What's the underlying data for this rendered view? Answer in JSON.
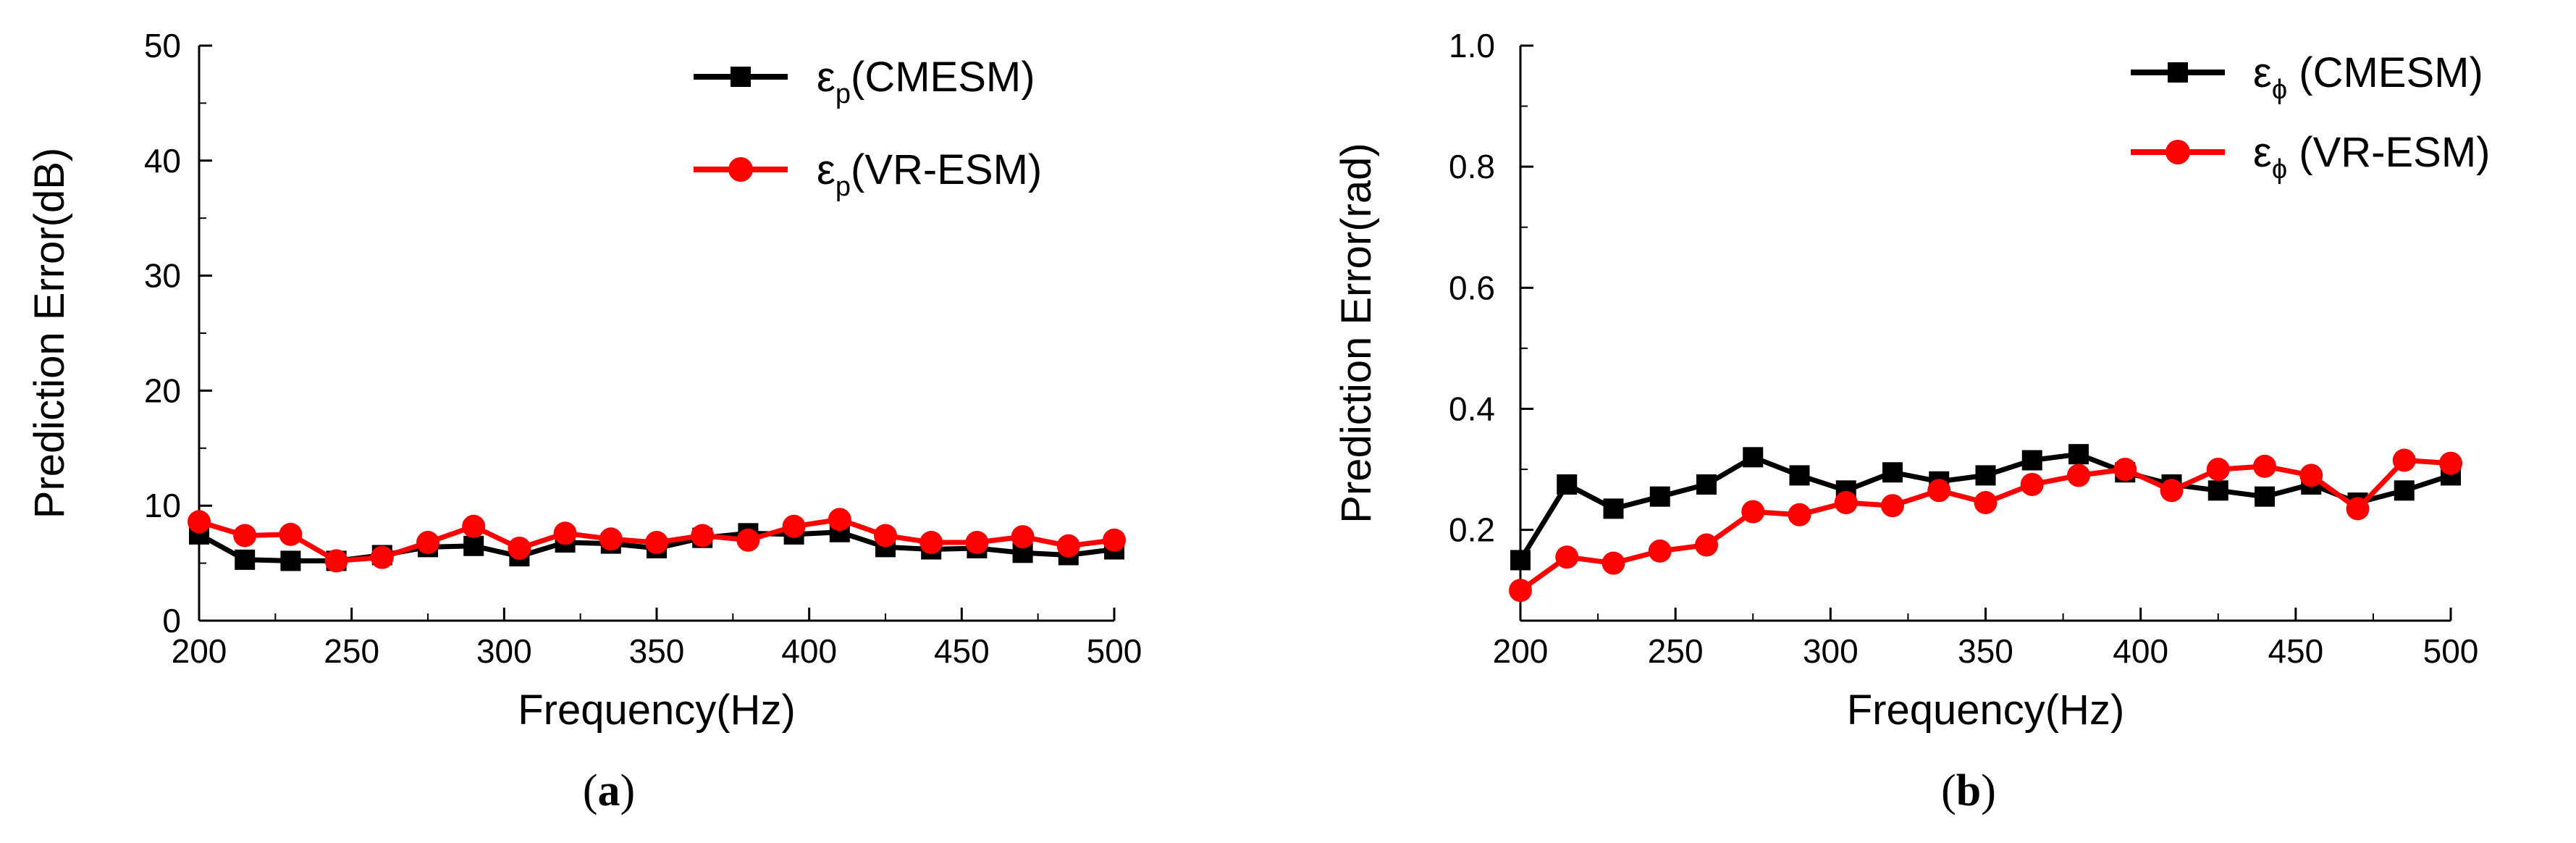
{
  "chart_data": [
    {
      "type": "line",
      "panel_label": "a",
      "xlabel": "Frequency(Hz)",
      "ylabel": "Prediction Error(dB)",
      "xlim": [
        200,
        500
      ],
      "ylim": [
        0,
        50
      ],
      "xticks": [
        200,
        250,
        300,
        350,
        400,
        450,
        500
      ],
      "yticks": [
        0,
        10,
        20,
        30,
        40,
        50
      ],
      "ytick_labels": [
        "0",
        "10",
        "20",
        "30",
        "40",
        "50"
      ],
      "x": [
        200,
        215,
        230,
        245,
        260,
        275,
        290,
        305,
        320,
        335,
        350,
        365,
        380,
        395,
        410,
        425,
        440,
        455,
        470,
        485,
        500
      ],
      "legend_position": "top-right",
      "series": [
        {
          "name": "εp(CMESM)",
          "legend_symbol": "ε",
          "legend_sub": "p",
          "legend_text": "(CMESM)",
          "color": "#000000",
          "marker": "square",
          "values": [
            7.5,
            5.3,
            5.2,
            5.2,
            5.7,
            6.4,
            6.5,
            5.6,
            6.8,
            6.7,
            6.3,
            7.2,
            7.6,
            7.5,
            7.7,
            6.4,
            6.2,
            6.3,
            5.9,
            5.7,
            6.2
          ]
        },
        {
          "name": "εp(VR-ESM)",
          "legend_symbol": "ε",
          "legend_sub": "p",
          "legend_text": "(VR-ESM)",
          "color": "#ff0000",
          "marker": "circle",
          "values": [
            8.6,
            7.4,
            7.5,
            5.2,
            5.5,
            6.8,
            8.2,
            6.3,
            7.6,
            7.1,
            6.8,
            7.4,
            7.0,
            8.2,
            8.8,
            7.4,
            6.8,
            6.8,
            7.3,
            6.5,
            7.0
          ]
        }
      ]
    },
    {
      "type": "line",
      "panel_label": "b",
      "xlabel": "Frequency(Hz)",
      "ylabel": "Prediction Error(rad)",
      "xlim": [
        200,
        500
      ],
      "ylim": [
        0.05,
        1.0
      ],
      "xticks": [
        200,
        250,
        300,
        350,
        400,
        450,
        500
      ],
      "yticks": [
        0.2,
        0.4,
        0.6,
        0.8,
        1.0
      ],
      "ytick_labels": [
        "0.2",
        "0.4",
        "0.6",
        "0.8",
        "1.0"
      ],
      "x": [
        200,
        215,
        230,
        245,
        260,
        275,
        290,
        305,
        320,
        335,
        350,
        365,
        380,
        395,
        410,
        425,
        440,
        455,
        470,
        485,
        500
      ],
      "legend_position": "top-right",
      "series": [
        {
          "name": "εϕ (CMESM)",
          "legend_symbol": "ε",
          "legend_sub": "ϕ",
          "legend_text": " (CMESM)",
          "color": "#000000",
          "marker": "square",
          "values": [
            0.15,
            0.275,
            0.235,
            0.255,
            0.275,
            0.32,
            0.29,
            0.265,
            0.295,
            0.28,
            0.29,
            0.315,
            0.325,
            0.295,
            0.275,
            0.265,
            0.255,
            0.275,
            0.245,
            0.265,
            0.29
          ]
        },
        {
          "name": "εϕ (VR-ESM)",
          "legend_symbol": "ε",
          "legend_sub": "ϕ",
          "legend_text": " (VR-ESM)",
          "color": "#ff0000",
          "marker": "circle",
          "values": [
            0.1,
            0.155,
            0.145,
            0.165,
            0.175,
            0.23,
            0.225,
            0.245,
            0.24,
            0.265,
            0.245,
            0.275,
            0.29,
            0.3,
            0.265,
            0.3,
            0.305,
            0.29,
            0.235,
            0.315,
            0.31
          ]
        }
      ]
    }
  ]
}
